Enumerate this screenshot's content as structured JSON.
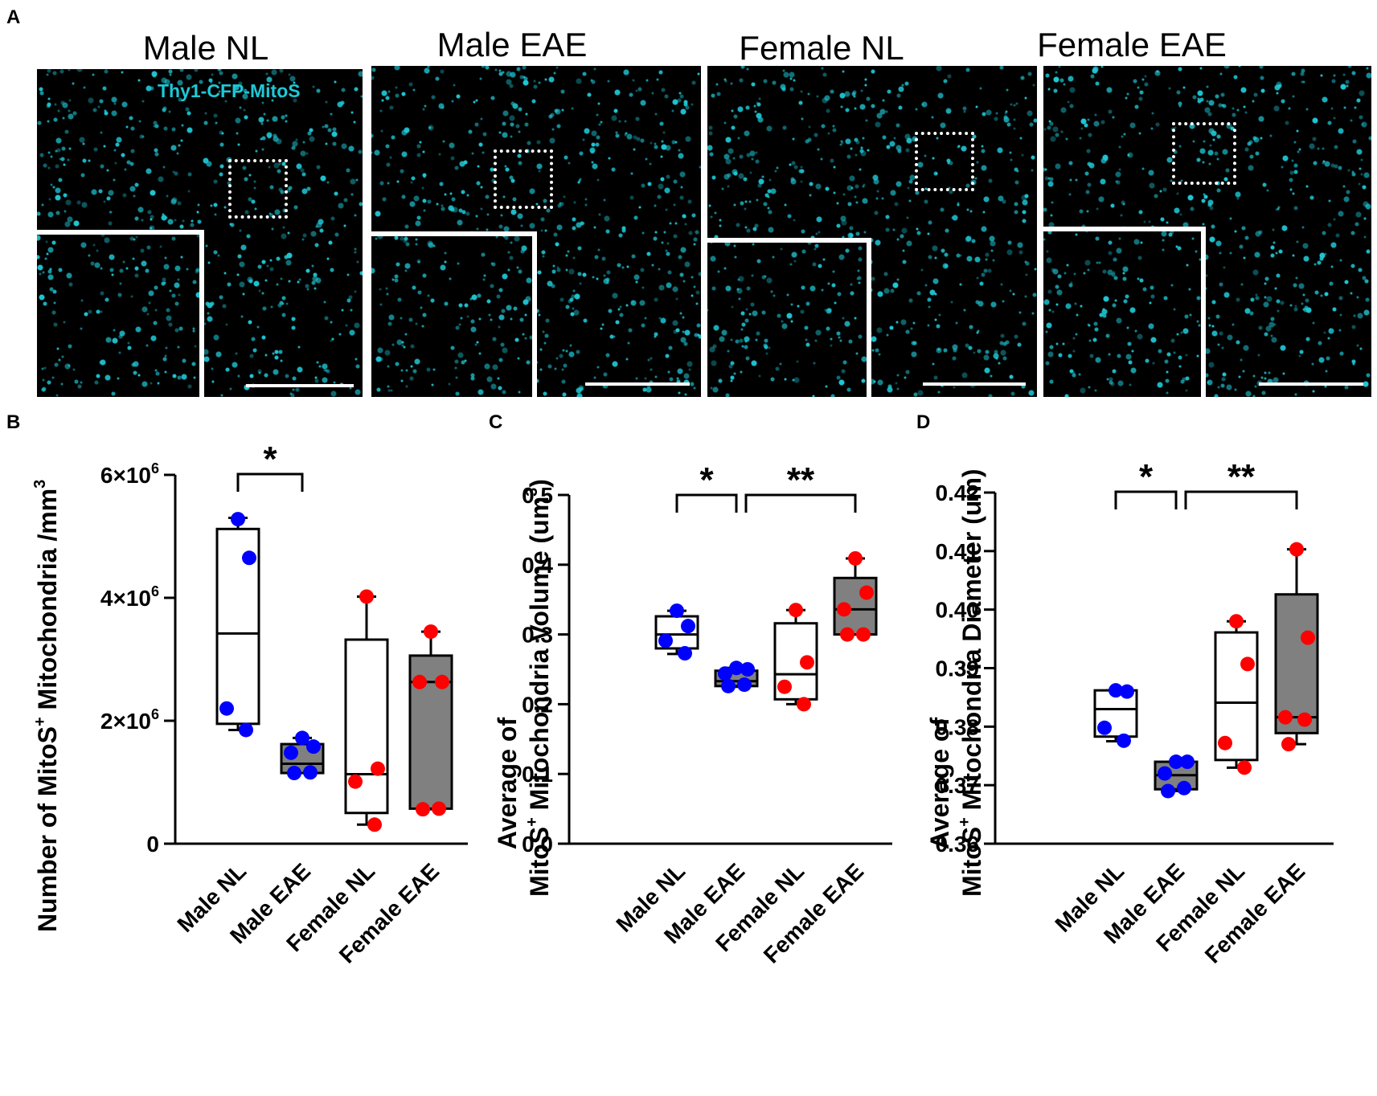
{
  "panel_labels": {
    "a": "A",
    "b": "B",
    "c": "C",
    "d": "D"
  },
  "micrographs": {
    "stain_label": "Thy1-CFP-MitoS",
    "stain_color": "#1ec8d6",
    "conditions": [
      "Male NL",
      "Male EAE",
      "Female NL",
      "Female EAE"
    ]
  },
  "colors": {
    "male": "#0000ff",
    "female": "#ff0000",
    "eae_box": "#808080",
    "nl_box": "#ffffff"
  },
  "chart_data": [
    {
      "id": "B",
      "type": "box",
      "title": "",
      "ylabel_main": "Number of MitoS",
      "ylabel_sup": "+",
      "ylabel_rest": " Mitochondria /mm",
      "ylabel_unit_sup": "3",
      "ylim": [
        0,
        6000000
      ],
      "yticks": [
        0,
        2000000,
        4000000,
        6000000
      ],
      "ytick_labels": [
        {
          "base": "0",
          "exp": ""
        },
        {
          "base": "2×10",
          "exp": "6"
        },
        {
          "base": "4×10",
          "exp": "6"
        },
        {
          "base": "6×10",
          "exp": "6"
        }
      ],
      "categories": [
        "Male NL",
        "Male EAE",
        "Female NL",
        "Female EAE"
      ],
      "series": [
        {
          "name": "Male NL",
          "color": "blue",
          "fill": "white",
          "min": 1850000,
          "q1": 1950000,
          "median": 3420000,
          "q3": 5120000,
          "max": 5300000,
          "points": [
            5280000,
            4650000,
            2200000,
            1850000
          ]
        },
        {
          "name": "Male EAE",
          "color": "blue",
          "fill": "gray",
          "min": 1150000,
          "q1": 1150000,
          "median": 1300000,
          "q3": 1620000,
          "max": 1720000,
          "points": [
            1720000,
            1580000,
            1480000,
            1160000,
            1150000
          ]
        },
        {
          "name": "Female NL",
          "color": "red",
          "fill": "white",
          "min": 310000,
          "q1": 500000,
          "median": 1130000,
          "q3": 3320000,
          "max": 4020000,
          "points": [
            4020000,
            1220000,
            1010000,
            310000
          ]
        },
        {
          "name": "Female EAE",
          "color": "red",
          "fill": "gray",
          "min": 560000,
          "q1": 570000,
          "median": 2630000,
          "q3": 3060000,
          "max": 3450000,
          "points": [
            3450000,
            2630000,
            2630000,
            570000,
            560000
          ]
        }
      ],
      "significance": [
        {
          "from": 0,
          "to": 1,
          "label": "*"
        }
      ]
    },
    {
      "id": "C",
      "type": "box",
      "ylabel_line1": "Average of",
      "ylabel_main": "MitoS",
      "ylabel_sup": "+",
      "ylabel_rest": " Mitochondria Volume (um",
      "ylabel_unit_sup": "3",
      "ylabel_end": ")",
      "ylim": [
        0.0,
        0.5
      ],
      "yticks": [
        0.0,
        0.1,
        0.2,
        0.3,
        0.4,
        0.5
      ],
      "ytick_labels": [
        "0.0",
        "0.1",
        "0.2",
        "0.3",
        "0.4",
        "0.5"
      ],
      "categories": [
        "Male NL",
        "Male EAE",
        "Female NL",
        "Female EAE"
      ],
      "series": [
        {
          "name": "Male NL",
          "color": "blue",
          "fill": "white",
          "min": 0.272,
          "q1": 0.28,
          "median": 0.3,
          "q3": 0.326,
          "max": 0.334,
          "points": [
            0.334,
            0.312,
            0.291,
            0.273
          ]
        },
        {
          "name": "Male EAE",
          "color": "blue",
          "fill": "gray",
          "min": 0.225,
          "q1": 0.226,
          "median": 0.233,
          "q3": 0.248,
          "max": 0.252,
          "points": [
            0.252,
            0.25,
            0.244,
            0.228,
            0.226
          ]
        },
        {
          "name": "Female NL",
          "color": "red",
          "fill": "white",
          "min": 0.2,
          "q1": 0.207,
          "median": 0.243,
          "q3": 0.316,
          "max": 0.335,
          "points": [
            0.335,
            0.26,
            0.225,
            0.2
          ]
        },
        {
          "name": "Female EAE",
          "color": "red",
          "fill": "gray",
          "min": 0.3,
          "q1": 0.3,
          "median": 0.336,
          "q3": 0.381,
          "max": 0.409,
          "points": [
            0.409,
            0.36,
            0.336,
            0.3,
            0.3
          ]
        }
      ],
      "significance": [
        {
          "from": 0,
          "to": 1,
          "label": "*"
        },
        {
          "from": 1,
          "to": 3,
          "label": "**"
        }
      ]
    },
    {
      "id": "D",
      "type": "box",
      "ylabel_line1": "Average of",
      "ylabel_main": "MitoS",
      "ylabel_sup": "+",
      "ylabel_rest": "  Mitochondria Diameter (um)",
      "ylim": [
        0.36,
        0.42
      ],
      "yticks": [
        0.36,
        0.37,
        0.38,
        0.39,
        0.4,
        0.41,
        0.42
      ],
      "ytick_labels": [
        "0.36",
        "0.37",
        "0.38",
        "0.39",
        "0.40",
        "0.41",
        "0.42"
      ],
      "categories": [
        "Male NL",
        "Male EAE",
        "Female NL",
        "Female EAE"
      ],
      "series": [
        {
          "name": "Male NL",
          "color": "blue",
          "fill": "white",
          "min": 0.3775,
          "q1": 0.3783,
          "median": 0.383,
          "q3": 0.3862,
          "max": 0.3862,
          "points": [
            0.3862,
            0.386,
            0.3798,
            0.3776
          ]
        },
        {
          "name": "Male EAE",
          "color": "blue",
          "fill": "gray",
          "min": 0.369,
          "q1": 0.3693,
          "median": 0.3717,
          "q3": 0.374,
          "max": 0.374,
          "points": [
            0.374,
            0.374,
            0.372,
            0.3695,
            0.369
          ]
        },
        {
          "name": "Female NL",
          "color": "red",
          "fill": "white",
          "min": 0.373,
          "q1": 0.3743,
          "median": 0.3841,
          "q3": 0.3961,
          "max": 0.398,
          "points": [
            0.398,
            0.3907,
            0.3772,
            0.373
          ]
        },
        {
          "name": "Female EAE",
          "color": "red",
          "fill": "gray",
          "min": 0.377,
          "q1": 0.3789,
          "median": 0.3816,
          "q3": 0.4026,
          "max": 0.4103,
          "points": [
            0.4103,
            0.3952,
            0.3816,
            0.3812,
            0.377
          ]
        }
      ],
      "significance": [
        {
          "from": 0,
          "to": 1,
          "label": "*"
        },
        {
          "from": 1,
          "to": 3,
          "label": "**"
        }
      ]
    }
  ]
}
